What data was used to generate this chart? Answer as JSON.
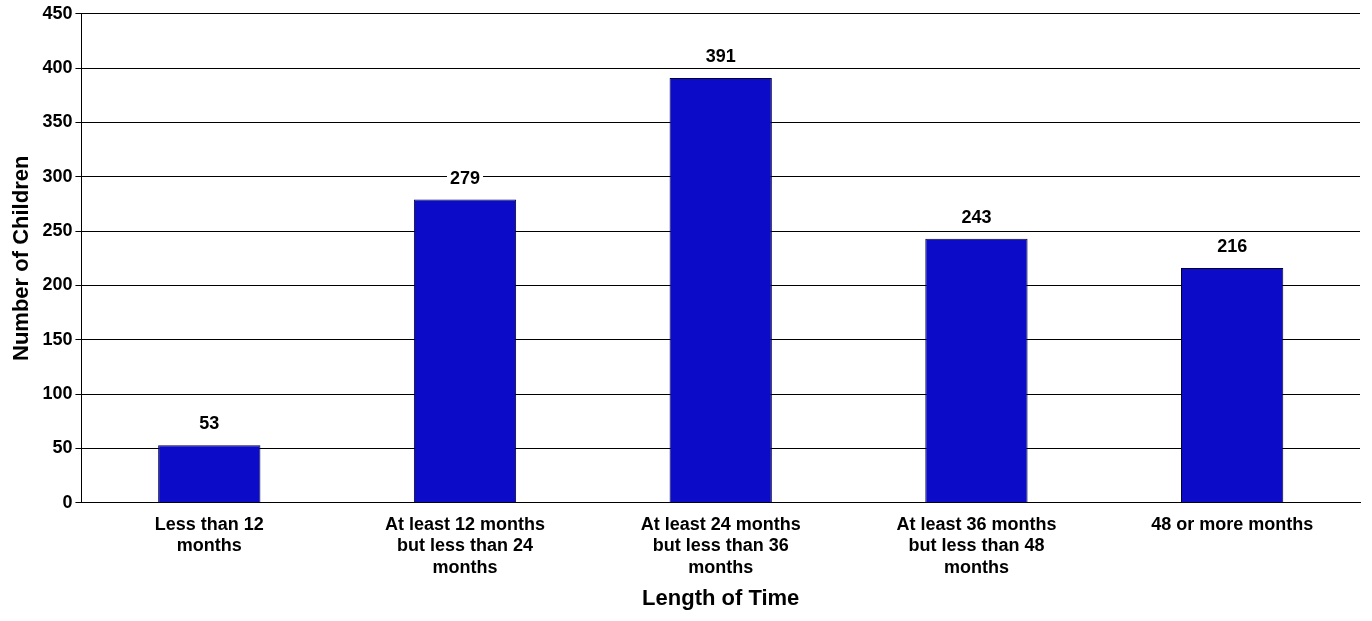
{
  "chart_data": {
    "type": "bar",
    "xlabel": "Length of Time",
    "ylabel": "Number of Children",
    "categories": [
      "Less than 12 months",
      "At least 12 months but less than 24 months",
      "At least 24 months but less than 36 months",
      "At least 36 months but less than 48 months",
      "48 or more months"
    ],
    "values": [
      53,
      279,
      391,
      243,
      216
    ],
    "color": "#0c0cc8",
    "ylim": [
      0,
      450
    ],
    "yticks": [
      0,
      50,
      100,
      150,
      200,
      250,
      300,
      350,
      400,
      450
    ],
    "grid": "y",
    "data_labels": true
  }
}
